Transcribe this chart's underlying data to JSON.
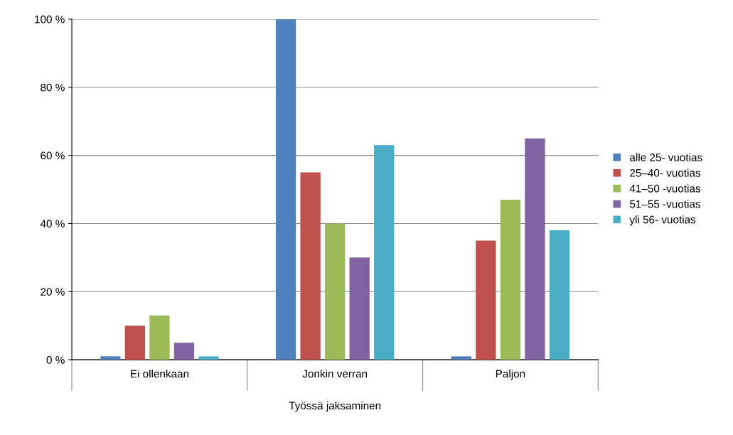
{
  "chart_data": {
    "type": "bar",
    "xlabel": "Työssä jaksaminen",
    "categories": [
      "Ei ollenkaan",
      "Jonkin verran",
      "Paljon"
    ],
    "series": [
      {
        "name": "alle 25- vuotias",
        "color": "#4f81bd",
        "values": [
          1,
          100,
          1
        ]
      },
      {
        "name": "25–40- vuotias",
        "color": "#c0504d",
        "values": [
          10,
          55,
          35
        ]
      },
      {
        "name": "41–50 -vuotias",
        "color": "#9bbb59",
        "values": [
          13,
          40,
          47
        ]
      },
      {
        "name": "51–55 -vuotias",
        "color": "#8064a2",
        "values": [
          5,
          30,
          65
        ]
      },
      {
        "name": "yli 56- vuotias",
        "color": "#4bacc6",
        "values": [
          1,
          63,
          38
        ]
      }
    ],
    "ylim": [
      0,
      100
    ],
    "yticks": [
      {
        "value": 0,
        "label": "0 %"
      },
      {
        "value": 20,
        "label": "20 %"
      },
      {
        "value": 40,
        "label": "40 %"
      },
      {
        "value": 60,
        "label": "60 %"
      },
      {
        "value": 80,
        "label": "80 %"
      },
      {
        "value": 100,
        "label": "100 %"
      }
    ],
    "grid": "y",
    "legend": "right"
  }
}
